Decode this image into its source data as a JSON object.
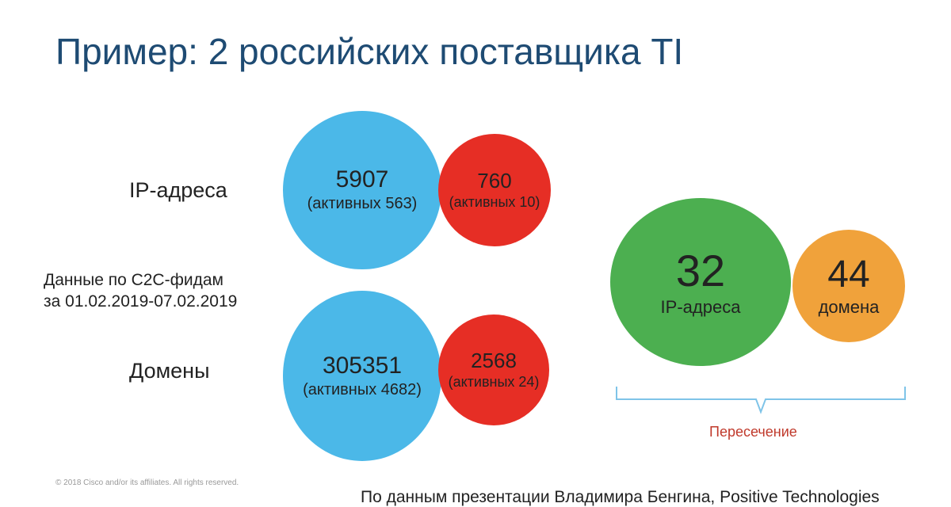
{
  "title": "Пример: 2 российских поставщика TI",
  "rows": {
    "ip": {
      "label": "IP-адреса",
      "provider_a": {
        "count": "5907",
        "active": "(активных 563)"
      },
      "provider_b": {
        "count": "760",
        "active": "(активных 10)"
      }
    },
    "domains": {
      "label": "Домены",
      "provider_a": {
        "count": "305351",
        "active": "(активных 4682)"
      },
      "provider_b": {
        "count": "2568",
        "active": "(активных 24)"
      }
    }
  },
  "note": {
    "line1": "Данные по C2C-фидам",
    "line2": "за 01.02.2019-07.02.2019"
  },
  "intersection": {
    "ip": {
      "count": "32",
      "label": "IP-адреса"
    },
    "domains": {
      "count": "44",
      "label": "домена"
    },
    "label": "Пересечение"
  },
  "footer": {
    "copyright": "© 2018  Cisco and/or its affiliates. All rights reserved.",
    "source": "По данным презентации Владимира Бенгина, Positive Technologies"
  },
  "colors": {
    "provider_a": "#4bb8e8",
    "provider_b": "#e62e25",
    "intersection_ip": "#4caf50",
    "intersection_domains": "#f0a23b",
    "title": "#1e4b73",
    "intersection_label": "#c0392b"
  }
}
